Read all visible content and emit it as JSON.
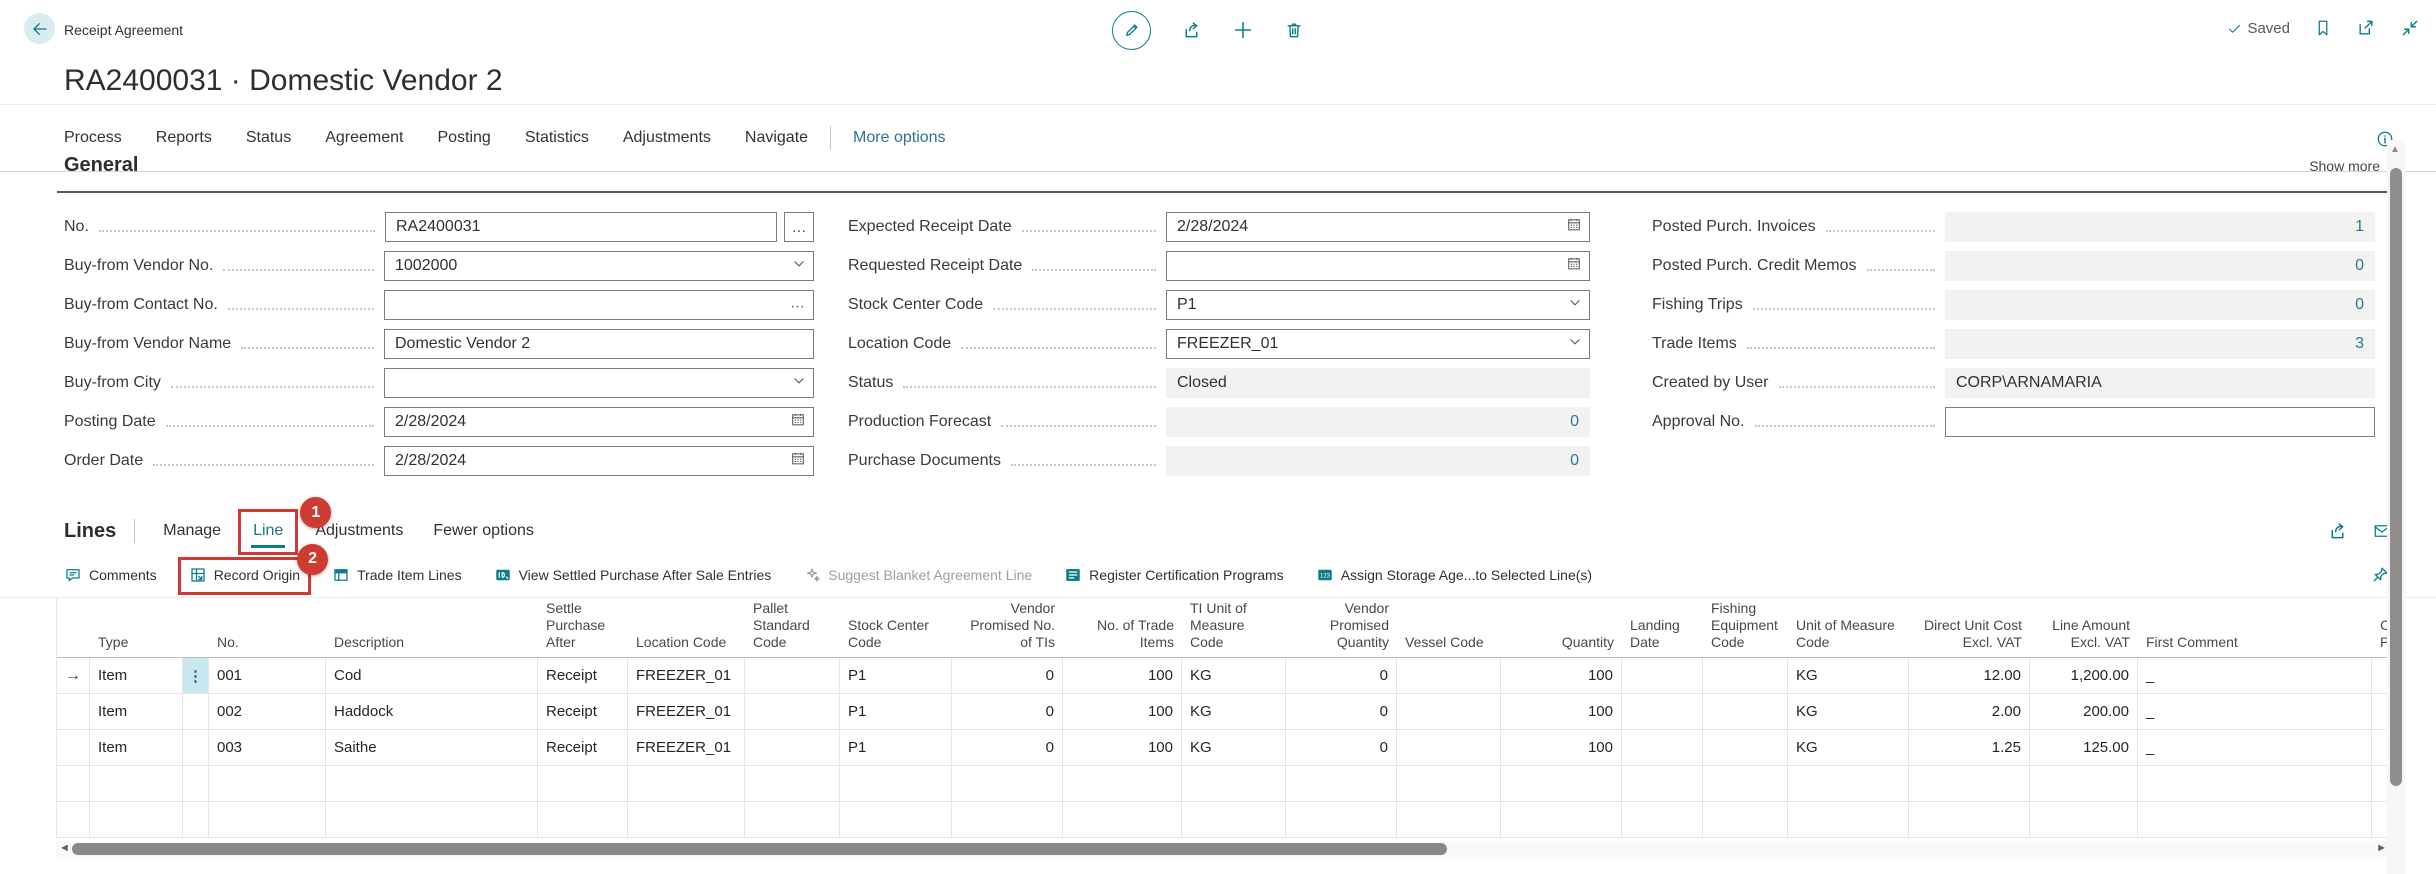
{
  "colors": {
    "accent": "#0a7e88",
    "annotation": "#cf3a32",
    "flowfield_link": "#26798e",
    "more_options": "#2d7390",
    "row_select": "#c7e8ee",
    "disabled_bg": "#f3f2f1"
  },
  "app": {
    "caption": "Receipt Agreement",
    "title": "RA2400031 · Domestic Vendor 2",
    "saved_label": "Saved"
  },
  "menu": {
    "items": [
      "Process",
      "Reports",
      "Status",
      "Agreement",
      "Posting",
      "Statistics",
      "Adjustments",
      "Navigate"
    ],
    "more_label": "More options"
  },
  "general": {
    "title": "General",
    "show_more_label": "Show more",
    "columns": [
      [
        {
          "label": "No.",
          "value": "RA2400031",
          "control": "assist"
        },
        {
          "label": "Buy-from Vendor No.",
          "value": "1002000",
          "control": "dropdown"
        },
        {
          "label": "Buy-from Contact No.",
          "value": "",
          "control": "ellipsis"
        },
        {
          "label": "Buy-from Vendor Name",
          "value": "Domestic Vendor 2",
          "control": "text"
        },
        {
          "label": "Buy-from City",
          "value": "",
          "control": "dropdown"
        },
        {
          "label": "Posting Date",
          "value": "2/28/2024",
          "control": "date"
        },
        {
          "label": "Order Date",
          "value": "2/28/2024",
          "control": "date"
        }
      ],
      [
        {
          "label": "Expected Receipt Date",
          "value": "2/28/2024",
          "control": "date"
        },
        {
          "label": "Requested Receipt Date",
          "value": "",
          "control": "date"
        },
        {
          "label": "Stock Center Code",
          "value": "P1",
          "control": "dropdown"
        },
        {
          "label": "Location Code",
          "value": "FREEZER_01",
          "control": "dropdown"
        },
        {
          "label": "Status",
          "value": "Closed",
          "control": "disabled"
        },
        {
          "label": "Production Forecast",
          "value": "0",
          "control": "disabled-number"
        },
        {
          "label": "Purchase Documents",
          "value": "0",
          "control": "disabled-number"
        }
      ],
      [
        {
          "label": "Posted Purch. Invoices",
          "value": "1",
          "control": "disabled-number"
        },
        {
          "label": "Posted Purch. Credit Memos",
          "value": "0",
          "control": "disabled-number"
        },
        {
          "label": "Fishing Trips",
          "value": "0",
          "control": "disabled-number"
        },
        {
          "label": "Trade Items",
          "value": "3",
          "control": "disabled-number"
        },
        {
          "label": "Created by User",
          "value": "CORP\\ARNAMARIA",
          "control": "disabled"
        },
        {
          "label": "Approval No.",
          "value": "",
          "control": "text"
        }
      ]
    ]
  },
  "lines": {
    "title": "Lines",
    "tabs": [
      {
        "label": "Manage"
      },
      {
        "label": "Line",
        "active": true,
        "annotation": "1"
      },
      {
        "label": "Adjustments"
      }
    ],
    "fewer_label": "Fewer options",
    "toolbar": [
      {
        "label": "Comments",
        "icon": "comments"
      },
      {
        "label": "Record Origin",
        "icon": "record-origin",
        "annotation": "2"
      },
      {
        "label": "Trade Item Lines",
        "icon": "trade-item-lines"
      },
      {
        "label": "View Settled Purchase After Sale Entries",
        "icon": "view-settled"
      },
      {
        "label": "Suggest Blanket Agreement Line",
        "icon": "suggest",
        "disabled": true
      },
      {
        "label": "Register Certification Programs",
        "icon": "register-cert"
      },
      {
        "label": "Assign Storage Age...to Selected Line(s)",
        "icon": "assign-storage"
      }
    ],
    "table": {
      "columns": [
        {
          "label": "",
          "align": "left"
        },
        {
          "label": "Type",
          "align": "left"
        },
        {
          "label": "",
          "align": "left"
        },
        {
          "label": "No.",
          "align": "left"
        },
        {
          "label": "Description",
          "align": "left"
        },
        {
          "label": "Settle Purchase After",
          "align": "left"
        },
        {
          "label": "Location Code",
          "align": "left"
        },
        {
          "label": "Pallet Standard Code",
          "align": "left"
        },
        {
          "label": "Stock Center Code",
          "align": "left"
        },
        {
          "label": "Vendor Promised No. of TIs",
          "align": "right"
        },
        {
          "label": "No. of Trade Items",
          "align": "right"
        },
        {
          "label": "TI Unit of Measure Code",
          "align": "left"
        },
        {
          "label": "Vendor Promised Quantity",
          "align": "right"
        },
        {
          "label": "Vessel Code",
          "align": "left"
        },
        {
          "label": "Quantity",
          "align": "right"
        },
        {
          "label": "Landing Date",
          "align": "left"
        },
        {
          "label": "Fishing Equipment Code",
          "align": "left"
        },
        {
          "label": "Unit of Measure Code",
          "align": "left"
        },
        {
          "label": "Direct Unit Cost Excl. VAT",
          "align": "right"
        },
        {
          "label": "Line Amount Excl. VAT",
          "align": "right"
        },
        {
          "label": "First Comment",
          "align": "left"
        },
        {
          "label": "C\nP",
          "align": "left"
        }
      ],
      "rows": [
        [
          "→",
          "Item",
          "⋮",
          "001",
          "Cod",
          "Receipt",
          "FREEZER_01",
          "",
          "P1",
          "0",
          "100",
          "KG",
          "0",
          "",
          "100",
          "",
          "",
          "KG",
          "12.00",
          "1,200.00",
          "_",
          ""
        ],
        [
          "",
          "Item",
          "",
          "002",
          "Haddock",
          "Receipt",
          "FREEZER_01",
          "",
          "P1",
          "0",
          "100",
          "KG",
          "0",
          "",
          "100",
          "",
          "",
          "KG",
          "2.00",
          "200.00",
          "_",
          ""
        ],
        [
          "",
          "Item",
          "",
          "003",
          "Saithe",
          "Receipt",
          "FREEZER_01",
          "",
          "P1",
          "0",
          "100",
          "KG",
          "0",
          "",
          "100",
          "",
          "",
          "KG",
          "1.25",
          "125.00",
          "_",
          ""
        ],
        [
          "",
          "",
          "",
          "",
          "",
          "",
          "",
          "",
          "",
          "",
          "",
          "",
          "",
          "",
          "",
          "",
          "",
          "",
          "",
          "",
          "",
          ""
        ],
        [
          "",
          "",
          "",
          "",
          "",
          "",
          "",
          "",
          "",
          "",
          "",
          "",
          "",
          "",
          "",
          "",
          "",
          "",
          "",
          "",
          "",
          ""
        ]
      ]
    }
  }
}
